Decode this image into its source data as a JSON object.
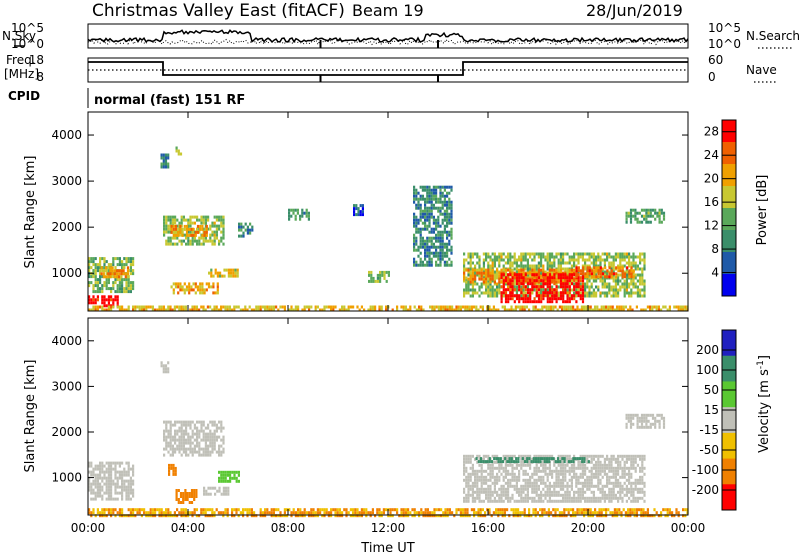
{
  "header": {
    "station": "Christmas Valley East (fitACF)",
    "beam": "Beam 19",
    "date": "28/Jun/2019"
  },
  "noise_panel": {
    "left_label": "N.Sky",
    "right_label": "N.Search",
    "left_ticks": [
      "10^5",
      "10^0"
    ],
    "right_ticks": [
      "10^5",
      "10^0"
    ]
  },
  "freq_panel": {
    "left_label_line1": "Freq.",
    "left_label_line2": "[MHz]",
    "right_label": "Nave",
    "left_ticks": [
      "18",
      "8"
    ],
    "right_ticks": [
      "60",
      "0"
    ]
  },
  "cpid": {
    "label": "CPID",
    "text": "normal (fast) 151 RF"
  },
  "colors": {
    "power_scale": [
      "#0000ee",
      "#1f5aa8",
      "#3a8e6a",
      "#5aa85a",
      "#c8c832",
      "#f0a000",
      "#f06000",
      "#ff0000"
    ],
    "velocity_scale": [
      "#2020c0",
      "#3a8e6a",
      "#5ac832",
      "#c0c0b8",
      "#f0c000",
      "#f08000",
      "#ff0000"
    ]
  },
  "chart_data": [
    {
      "type": "heatmap",
      "title": "Power",
      "xlabel": "Time UT",
      "ylabel": "Slant Range [km]",
      "x_ticks": [
        "00:00",
        "04:00",
        "08:00",
        "12:00",
        "16:00",
        "20:00",
        "00:00"
      ],
      "x_range_hours": [
        0,
        24
      ],
      "y_ticks": [
        "1000",
        "2000",
        "3000",
        "4000"
      ],
      "ylim_km": [
        180,
        4500
      ],
      "colorbar": {
        "label": "Power [dB]",
        "ticks": [
          "4",
          "8",
          "12",
          "16",
          "20",
          "24",
          "28"
        ],
        "range": [
          0,
          30
        ]
      },
      "regions": [
        {
          "t0": 0.0,
          "t1": 1.2,
          "r0": 300,
          "r1": 520,
          "v": 29
        },
        {
          "t0": 0.0,
          "t1": 1.8,
          "r0": 600,
          "r1": 1350,
          "v": 14
        },
        {
          "t0": 0.5,
          "t1": 1.6,
          "r0": 900,
          "r1": 1150,
          "v": 22
        },
        {
          "t0": 3.0,
          "t1": 5.4,
          "r0": 1600,
          "r1": 2250,
          "v": 15
        },
        {
          "t0": 3.3,
          "t1": 4.8,
          "r0": 1800,
          "r1": 2050,
          "v": 21
        },
        {
          "t0": 3.3,
          "t1": 5.2,
          "r0": 600,
          "r1": 800,
          "v": 20
        },
        {
          "t0": 4.8,
          "t1": 6.0,
          "r0": 950,
          "r1": 1100,
          "v": 18
        },
        {
          "t0": 2.9,
          "t1": 3.2,
          "r0": 3300,
          "r1": 3600,
          "v": 8
        },
        {
          "t0": 3.5,
          "t1": 3.7,
          "r0": 3600,
          "r1": 3750,
          "v": 14
        },
        {
          "t0": 6.0,
          "t1": 6.6,
          "r0": 1800,
          "r1": 2100,
          "v": 10
        },
        {
          "t0": 8.0,
          "t1": 8.8,
          "r0": 2200,
          "r1": 2400,
          "v": 11
        },
        {
          "t0": 10.6,
          "t1": 11.0,
          "r0": 2300,
          "r1": 2500,
          "v": 6
        },
        {
          "t0": 11.2,
          "t1": 12.0,
          "r0": 850,
          "r1": 1050,
          "v": 14
        },
        {
          "t0": 13.0,
          "t1": 14.5,
          "r0": 1200,
          "r1": 2900,
          "v": 9
        },
        {
          "t0": 15.0,
          "t1": 22.3,
          "r0": 500,
          "r1": 1450,
          "v": 15
        },
        {
          "t0": 15.0,
          "t1": 19.5,
          "r0": 800,
          "r1": 1100,
          "v": 22
        },
        {
          "t0": 16.5,
          "t1": 19.8,
          "r0": 400,
          "r1": 1000,
          "v": 29
        },
        {
          "t0": 19.5,
          "t1": 21.8,
          "r0": 950,
          "r1": 1150,
          "v": 24
        },
        {
          "t0": 21.5,
          "t1": 23.0,
          "r0": 2100,
          "r1": 2400,
          "v": 12
        },
        {
          "t0": 0.0,
          "t1": 24.0,
          "r0": 180,
          "r1": 300,
          "v": 19
        }
      ]
    },
    {
      "type": "heatmap",
      "title": "Velocity",
      "xlabel": "Time UT",
      "ylabel": "Slant Range [km]",
      "x_ticks": [
        "00:00",
        "04:00",
        "08:00",
        "12:00",
        "16:00",
        "20:00",
        "00:00"
      ],
      "x_range_hours": [
        0,
        24
      ],
      "y_ticks": [
        "1000",
        "2000",
        "3000",
        "4000"
      ],
      "ylim_km": [
        180,
        4500
      ],
      "colorbar": {
        "label": "Velocity [m s^-1]",
        "ticks": [
          "200",
          "100",
          "50",
          "15",
          "-15",
          "-50",
          "-100",
          "-200"
        ],
        "range": [
          -250,
          250
        ]
      },
      "regions": [
        {
          "t0": 0.0,
          "t1": 1.8,
          "r0": 500,
          "r1": 1350,
          "v": 0
        },
        {
          "t0": 3.0,
          "t1": 5.4,
          "r0": 1500,
          "r1": 2250,
          "v": 0
        },
        {
          "t0": 3.5,
          "t1": 4.3,
          "r0": 450,
          "r1": 750,
          "v": -80
        },
        {
          "t0": 4.6,
          "t1": 5.6,
          "r0": 650,
          "r1": 800,
          "v": 0
        },
        {
          "t0": 5.2,
          "t1": 6.0,
          "r0": 950,
          "r1": 1150,
          "v": 60
        },
        {
          "t0": 3.2,
          "t1": 3.5,
          "r0": 1100,
          "r1": 1300,
          "v": -60
        },
        {
          "t0": 2.9,
          "t1": 3.2,
          "r0": 3300,
          "r1": 3550,
          "v": 0
        },
        {
          "t0": 15.0,
          "t1": 22.3,
          "r0": 450,
          "r1": 1500,
          "v": 0
        },
        {
          "t0": 15.5,
          "t1": 20.0,
          "r0": 1350,
          "r1": 1450,
          "v": 120
        },
        {
          "t0": 21.5,
          "t1": 23.0,
          "r0": 2100,
          "r1": 2400,
          "v": 0
        },
        {
          "t0": 0.0,
          "t1": 24.0,
          "r0": 180,
          "r1": 330,
          "v": -40
        }
      ]
    }
  ]
}
